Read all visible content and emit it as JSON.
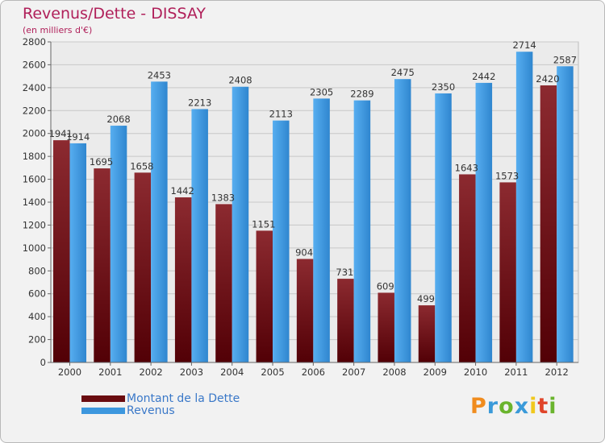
{
  "title": "Revenus/Dette - DISSAY",
  "subtitle": "(en milliers d'€)",
  "logo_letters": [
    "P",
    "r",
    "o",
    "x",
    "i",
    "t",
    "i"
  ],
  "logo_colors": [
    "#f08c1e",
    "#3a9ad9",
    "#6ab42d",
    "#3a9ad9",
    "#f0c81e",
    "#e0452a",
    "#6ab42d"
  ],
  "chart_data": {
    "type": "bar",
    "categories": [
      "2000",
      "2001",
      "2002",
      "2003",
      "2004",
      "2005",
      "2006",
      "2007",
      "2008",
      "2009",
      "2010",
      "2011",
      "2012"
    ],
    "series": [
      {
        "name": "Montant de la Dette",
        "color": "#7a1418",
        "values": [
          1941,
          1695,
          1658,
          1442,
          1383,
          1151,
          904,
          731,
          609,
          499,
          1643,
          1573,
          2420
        ]
      },
      {
        "name": "Revenus",
        "color": "#3d97de",
        "values": [
          1914,
          2068,
          2453,
          2213,
          2408,
          2113,
          2305,
          2289,
          2475,
          2350,
          2442,
          2714,
          2587
        ]
      }
    ],
    "y_ticks": [
      0,
      200,
      400,
      600,
      800,
      1000,
      1200,
      1400,
      1600,
      1800,
      2000,
      2200,
      2400,
      2600,
      2800
    ],
    "ylim": [
      0,
      2800
    ],
    "grid": true,
    "legend_position": "bottom-left"
  }
}
